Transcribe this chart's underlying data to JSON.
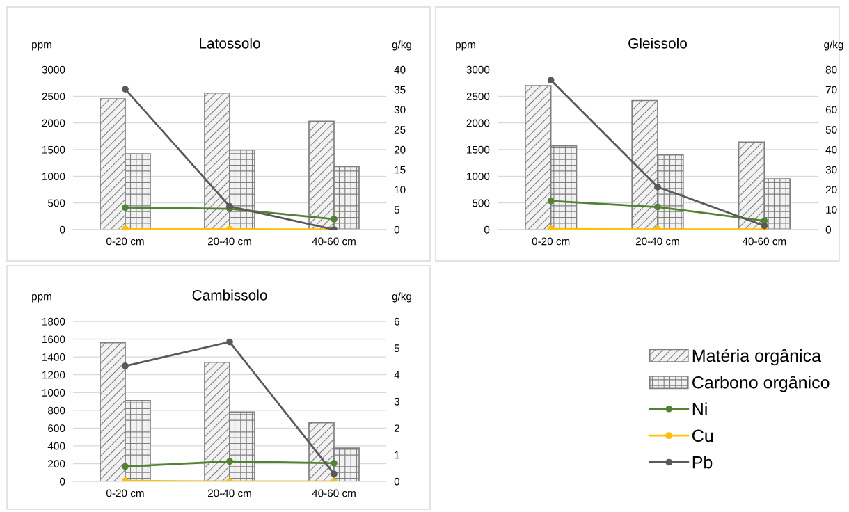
{
  "chart_data": [
    {
      "type": "bar",
      "title": "Latossolo",
      "ylabel": "ppm",
      "y2label": "g/kg",
      "categories": [
        "0-20 cm",
        "20-40 cm",
        "40-60 cm"
      ],
      "ylim": [
        0,
        3000
      ],
      "yticks": [
        0,
        500,
        1000,
        1500,
        2000,
        2500,
        3000
      ],
      "y2lim": [
        0,
        40
      ],
      "y2ticks": [
        0,
        5,
        10,
        15,
        20,
        25,
        30,
        35,
        40
      ],
      "grid": "y",
      "marker": "circle",
      "legend": "bottom right",
      "series": [
        {
          "name": "Matéria orgânica",
          "color": "#7f7f7f",
          "values": [
            2450,
            2560,
            2030
          ]
        },
        {
          "name": "Carbono orgânico",
          "color": "#7f7f7f",
          "values": [
            1420,
            1490,
            1180
          ]
        },
        {
          "name": "Ni",
          "type": "line",
          "axis": "y2",
          "color": "#548235",
          "values": [
            5.5,
            5.2,
            2.6
          ]
        },
        {
          "name": "Cu",
          "type": "line",
          "axis": "y2",
          "color": "#ffc000",
          "values": [
            0.1,
            0.1,
            0
          ]
        },
        {
          "name": "Pb",
          "type": "line",
          "axis": "y2",
          "color": "#595959",
          "values": [
            35.1,
            5.8,
            0
          ]
        }
      ]
    },
    {
      "type": "bar",
      "title": "Gleissolo",
      "ylabel": "ppm",
      "y2label": "g/kg",
      "categories": [
        "0-20 cm",
        "20-40 cm",
        "40-60 cm"
      ],
      "ylim": [
        0,
        3000
      ],
      "yticks": [
        0,
        500,
        1000,
        1500,
        2000,
        2500,
        3000
      ],
      "y2lim": [
        0,
        80
      ],
      "y2ticks": [
        0,
        10,
        20,
        30,
        40,
        50,
        60,
        70,
        80
      ],
      "grid": "y",
      "marker": "circle",
      "series": [
        {
          "color": "#7f7f7f",
          "values": [
            2700,
            2420,
            1640
          ]
        },
        {
          "color": "#7f7f7f",
          "values": [
            1570,
            1400,
            950
          ]
        },
        {
          "type": "line",
          "axis": "y2",
          "color": "#548235",
          "values": [
            14.3,
            11.3,
            4.4
          ]
        },
        {
          "type": "line",
          "axis": "y2",
          "color": "#ffc000",
          "values": [
            0.3,
            0.1,
            0.1
          ]
        },
        {
          "type": "line",
          "axis": "y2",
          "color": "#595959",
          "values": [
            74.7,
            21.3,
            1.9
          ]
        }
      ]
    },
    {
      "type": "bar",
      "title": "Cambissolo",
      "ylabel": "ppm",
      "y2label": "g/kg",
      "categories": [
        "0-20 cm",
        "20-40 cm",
        "40-60 cm"
      ],
      "ylim": [
        0,
        1800
      ],
      "yticks": [
        0,
        200,
        400,
        600,
        800,
        1000,
        1200,
        1400,
        1600,
        1800
      ],
      "y2lim": [
        0,
        6
      ],
      "y2ticks": [
        0,
        1,
        2,
        3,
        4,
        5,
        6
      ],
      "grid": "y",
      "marker": "circle",
      "series": [
        {
          "color": "#7f7f7f",
          "values": [
            1560,
            1340,
            660
          ]
        },
        {
          "color": "#7f7f7f",
          "values": [
            910,
            780,
            375
          ]
        },
        {
          "type": "line",
          "axis": "y2",
          "color": "#548235",
          "values": [
            0.56,
            0.75,
            0.68
          ]
        },
        {
          "type": "line",
          "axis": "y2",
          "color": "#ffc000",
          "values": [
            0.02,
            0,
            0
          ]
        },
        {
          "type": "line",
          "axis": "y2",
          "color": "#595959",
          "values": [
            4.33,
            5.23,
            0.28
          ]
        }
      ]
    }
  ]
}
